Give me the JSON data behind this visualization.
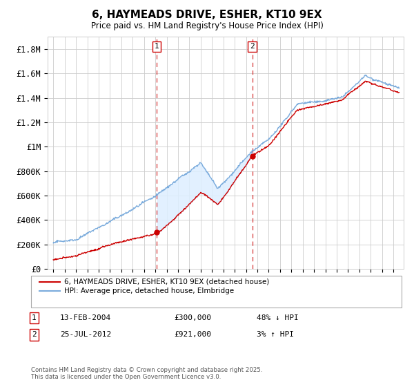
{
  "title": "6, HAYMEADS DRIVE, ESHER, KT10 9EX",
  "subtitle": "Price paid vs. HM Land Registry's House Price Index (HPI)",
  "ylim": [
    0,
    1900000
  ],
  "yticks": [
    0,
    200000,
    400000,
    600000,
    800000,
    1000000,
    1200000,
    1400000,
    1600000,
    1800000
  ],
  "ytick_labels": [
    "£0",
    "£200K",
    "£400K",
    "£600K",
    "£800K",
    "£1M",
    "£1.2M",
    "£1.4M",
    "£1.6M",
    "£1.8M"
  ],
  "sale1_date": "13-FEB-2004",
  "sale1_price": 300000,
  "sale1_x": 2004.12,
  "sale1_label": "48% ↓ HPI",
  "sale2_date": "25-JUL-2012",
  "sale2_price": 921000,
  "sale2_x": 2012.55,
  "sale2_label": "3% ↑ HPI",
  "legend_line1": "6, HAYMEADS DRIVE, ESHER, KT10 9EX (detached house)",
  "legend_line2": "HPI: Average price, detached house, Elmbridge",
  "footnote": "Contains HM Land Registry data © Crown copyright and database right 2025.\nThis data is licensed under the Open Government Licence v3.0.",
  "hpi_color": "#7aabdc",
  "price_color": "#cc0000",
  "shading_color": "#ddeeff",
  "background_color": "#ffffff",
  "grid_color": "#cccccc"
}
